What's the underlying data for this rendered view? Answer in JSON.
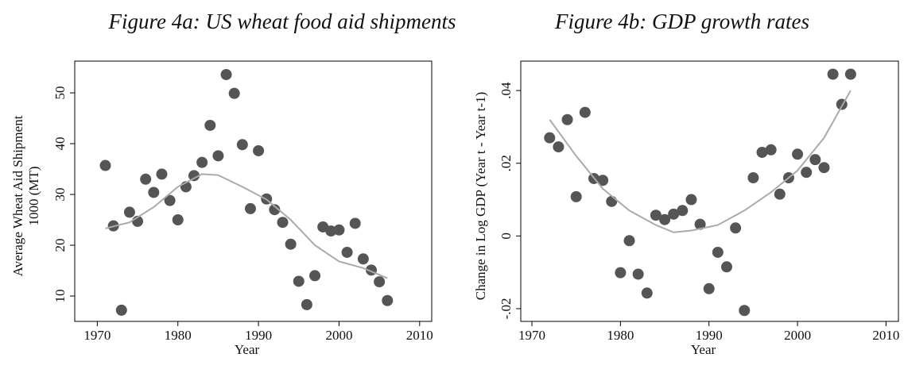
{
  "chart_data": [
    {
      "type": "scatter",
      "title": "Figure 4a: US wheat food aid shipments",
      "xlabel": "Year",
      "ylabel": [
        "Average Wheat Aid Shipment",
        "1000 (MT)"
      ],
      "xlim": [
        1967.2,
        2011.5
      ],
      "ylim": [
        5,
        56.25
      ],
      "xticks": [
        1970,
        1980,
        1990,
        2000,
        2010
      ],
      "yticks": [
        10,
        20,
        30,
        40,
        50
      ],
      "series": [
        {
          "type": "scatter",
          "color": "#555555",
          "x": [
            1971,
            1972,
            1973,
            1974,
            1975,
            1976,
            1977,
            1978,
            1979,
            1980,
            1981,
            1982,
            1983,
            1984,
            1985,
            1986,
            1987,
            1988,
            1989,
            1990,
            1991,
            1992,
            1993,
            1994,
            1995,
            1996,
            1997,
            1998,
            1999,
            2000,
            2001,
            2002,
            2003,
            2004,
            2005,
            2006
          ],
          "values": [
            35.7,
            23.8,
            7.2,
            26.5,
            24.7,
            33,
            30.4,
            34,
            28.8,
            25,
            31.5,
            33.7,
            36.3,
            43.6,
            37.6,
            53.6,
            49.9,
            39.8,
            27.2,
            38.6,
            29.1,
            27,
            24.5,
            20.2,
            12.9,
            8.3,
            14,
            23.6,
            22.8,
            23,
            18.6,
            24.3,
            17.3,
            15.1,
            12.8,
            9.1
          ]
        },
        {
          "type": "line",
          "color": "#aaaaaa",
          "x": [
            1971,
            1974,
            1977,
            1980,
            1983,
            1985,
            1988,
            1991,
            1994,
            1997,
            2000,
            2003,
            2006
          ],
          "values": [
            23.3,
            24.5,
            27.5,
            31.5,
            34,
            33.8,
            31.5,
            29,
            25,
            20,
            16.8,
            15.5,
            13.5
          ]
        }
      ]
    },
    {
      "type": "scatter",
      "title": "Figure 4b: GDP growth rates",
      "xlabel": "Year",
      "ylabel": [
        "Change in Log GDP (Year t - Year t-1)"
      ],
      "xlim": [
        1968.74,
        2011.4
      ],
      "ylim": [
        -0.0235,
        0.0481
      ],
      "xticks": [
        1970,
        1980,
        1990,
        2000,
        2010
      ],
      "yticks": [
        {
          "value": -0.02,
          "label": "-.02"
        },
        0,
        {
          "value": 0.02,
          "label": ".02"
        },
        {
          "value": 0.04,
          "label": ".04"
        }
      ],
      "series": [
        {
          "type": "scatter",
          "color": "#555555",
          "x": [
            1972,
            1973,
            1974,
            1975,
            1976,
            1977,
            1978,
            1979,
            1980,
            1981,
            1982,
            1983,
            1984,
            1985,
            1986,
            1987,
            1988,
            1989,
            1990,
            1991,
            1992,
            1993,
            1994,
            1995,
            1996,
            1997,
            1998,
            1999,
            2000,
            2001,
            2002,
            2003,
            2004,
            2005,
            2006
          ],
          "values": [
            0.027,
            0.0245,
            0.032,
            0.0108,
            0.034,
            0.0158,
            0.0153,
            0.0095,
            -0.0101,
            -0.0013,
            -0.0105,
            -0.0157,
            0.0057,
            0.0045,
            0.006,
            0.007,
            0.01,
            0.0032,
            -0.0145,
            -0.0045,
            -0.0085,
            0.0022,
            -0.0205,
            0.016,
            0.023,
            0.0237,
            0.0115,
            0.016,
            0.0225,
            0.0175,
            0.021,
            0.0188,
            0.0445,
            0.0362,
            0.0445
          ]
        },
        {
          "type": "line",
          "color": "#aaaaaa",
          "x": [
            1972,
            1975,
            1978,
            1981,
            1984,
            1986,
            1988,
            1991,
            1994,
            1997,
            2000,
            2003,
            2006
          ],
          "values": [
            0.032,
            0.022,
            0.013,
            0.007,
            0.003,
            0.001,
            0.0015,
            0.003,
            0.007,
            0.012,
            0.018,
            0.027,
            0.04
          ]
        }
      ]
    }
  ]
}
